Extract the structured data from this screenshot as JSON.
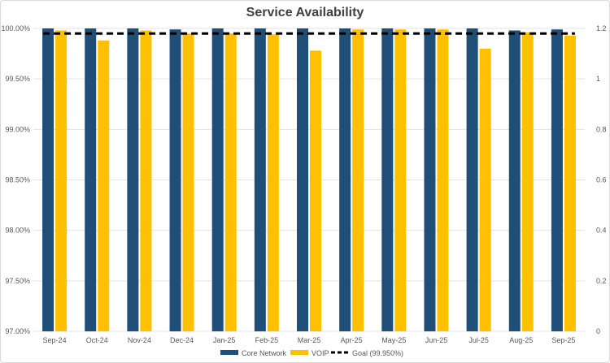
{
  "chart_data": {
    "type": "bar",
    "title": "Service Availability",
    "categories": [
      "Sep-24",
      "Oct-24",
      "Nov-24",
      "Dec-24",
      "Jan-25",
      "Feb-25",
      "Mar-25",
      "Apr-25",
      "May-25",
      "Jun-25",
      "Jul-25",
      "Aug-25",
      "Sep-25"
    ],
    "series": [
      {
        "name": "Core Network",
        "color": "#1f4e79",
        "values": [
          100.0,
          100.0,
          100.0,
          99.99,
          100.0,
          100.0,
          100.0,
          100.0,
          100.0,
          100.0,
          100.0,
          99.98,
          99.99
        ]
      },
      {
        "name": "VOIP",
        "color": "#ffc000",
        "values": [
          99.98,
          99.88,
          99.98,
          99.95,
          99.95,
          99.94,
          99.78,
          99.99,
          99.99,
          99.99,
          99.8,
          99.96,
          99.93
        ]
      }
    ],
    "goal": {
      "name": "Goal (99.950%)",
      "value": 99.95,
      "color": "#000000"
    },
    "ylim": [
      97.0,
      100.0
    ],
    "yticks": [
      "97.00%",
      "97.50%",
      "98.00%",
      "98.50%",
      "99.00%",
      "99.50%",
      "100.00%"
    ],
    "y2lim": [
      0,
      1.2
    ],
    "y2ticks": [
      "0",
      "0.2",
      "0.4",
      "0.6",
      "0.8",
      "1",
      "1.2"
    ],
    "xlabel": "",
    "ylabel": "",
    "grid": true,
    "legend": "bottom"
  }
}
